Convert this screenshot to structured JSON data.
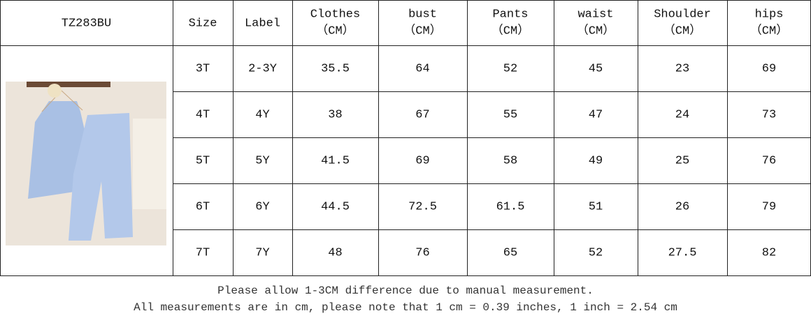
{
  "table": {
    "header": [
      [
        "TZ283BU"
      ],
      [
        "Size"
      ],
      [
        "Label"
      ],
      [
        "Clothes",
        "（CM）"
      ],
      [
        "bust",
        "（CM）"
      ],
      [
        "Pants",
        "（CM）"
      ],
      [
        "waist",
        "（CM）"
      ],
      [
        "Shoulder",
        "（CM）"
      ],
      [
        "hips",
        "（CM）"
      ]
    ],
    "rows": [
      [
        "3T",
        "2-3Y",
        35.5,
        64,
        52,
        45,
        23,
        69
      ],
      [
        "4T",
        "4Y",
        38,
        67,
        55,
        47,
        24,
        73
      ],
      [
        "5T",
        "5Y",
        41.5,
        69,
        58,
        49,
        25,
        76
      ],
      [
        "6T",
        "6Y",
        44.5,
        72.5,
        61.5,
        51,
        26,
        79
      ],
      [
        "7T",
        "7Y",
        48,
        76,
        65,
        52,
        27.5,
        82
      ]
    ]
  },
  "notes": [
    "Please allow 1-3CM difference due to manual measurement.",
    "All measurements are in cm, please note that 1 cm = 0.39 inches, 1 inch = 2.54 cm"
  ]
}
